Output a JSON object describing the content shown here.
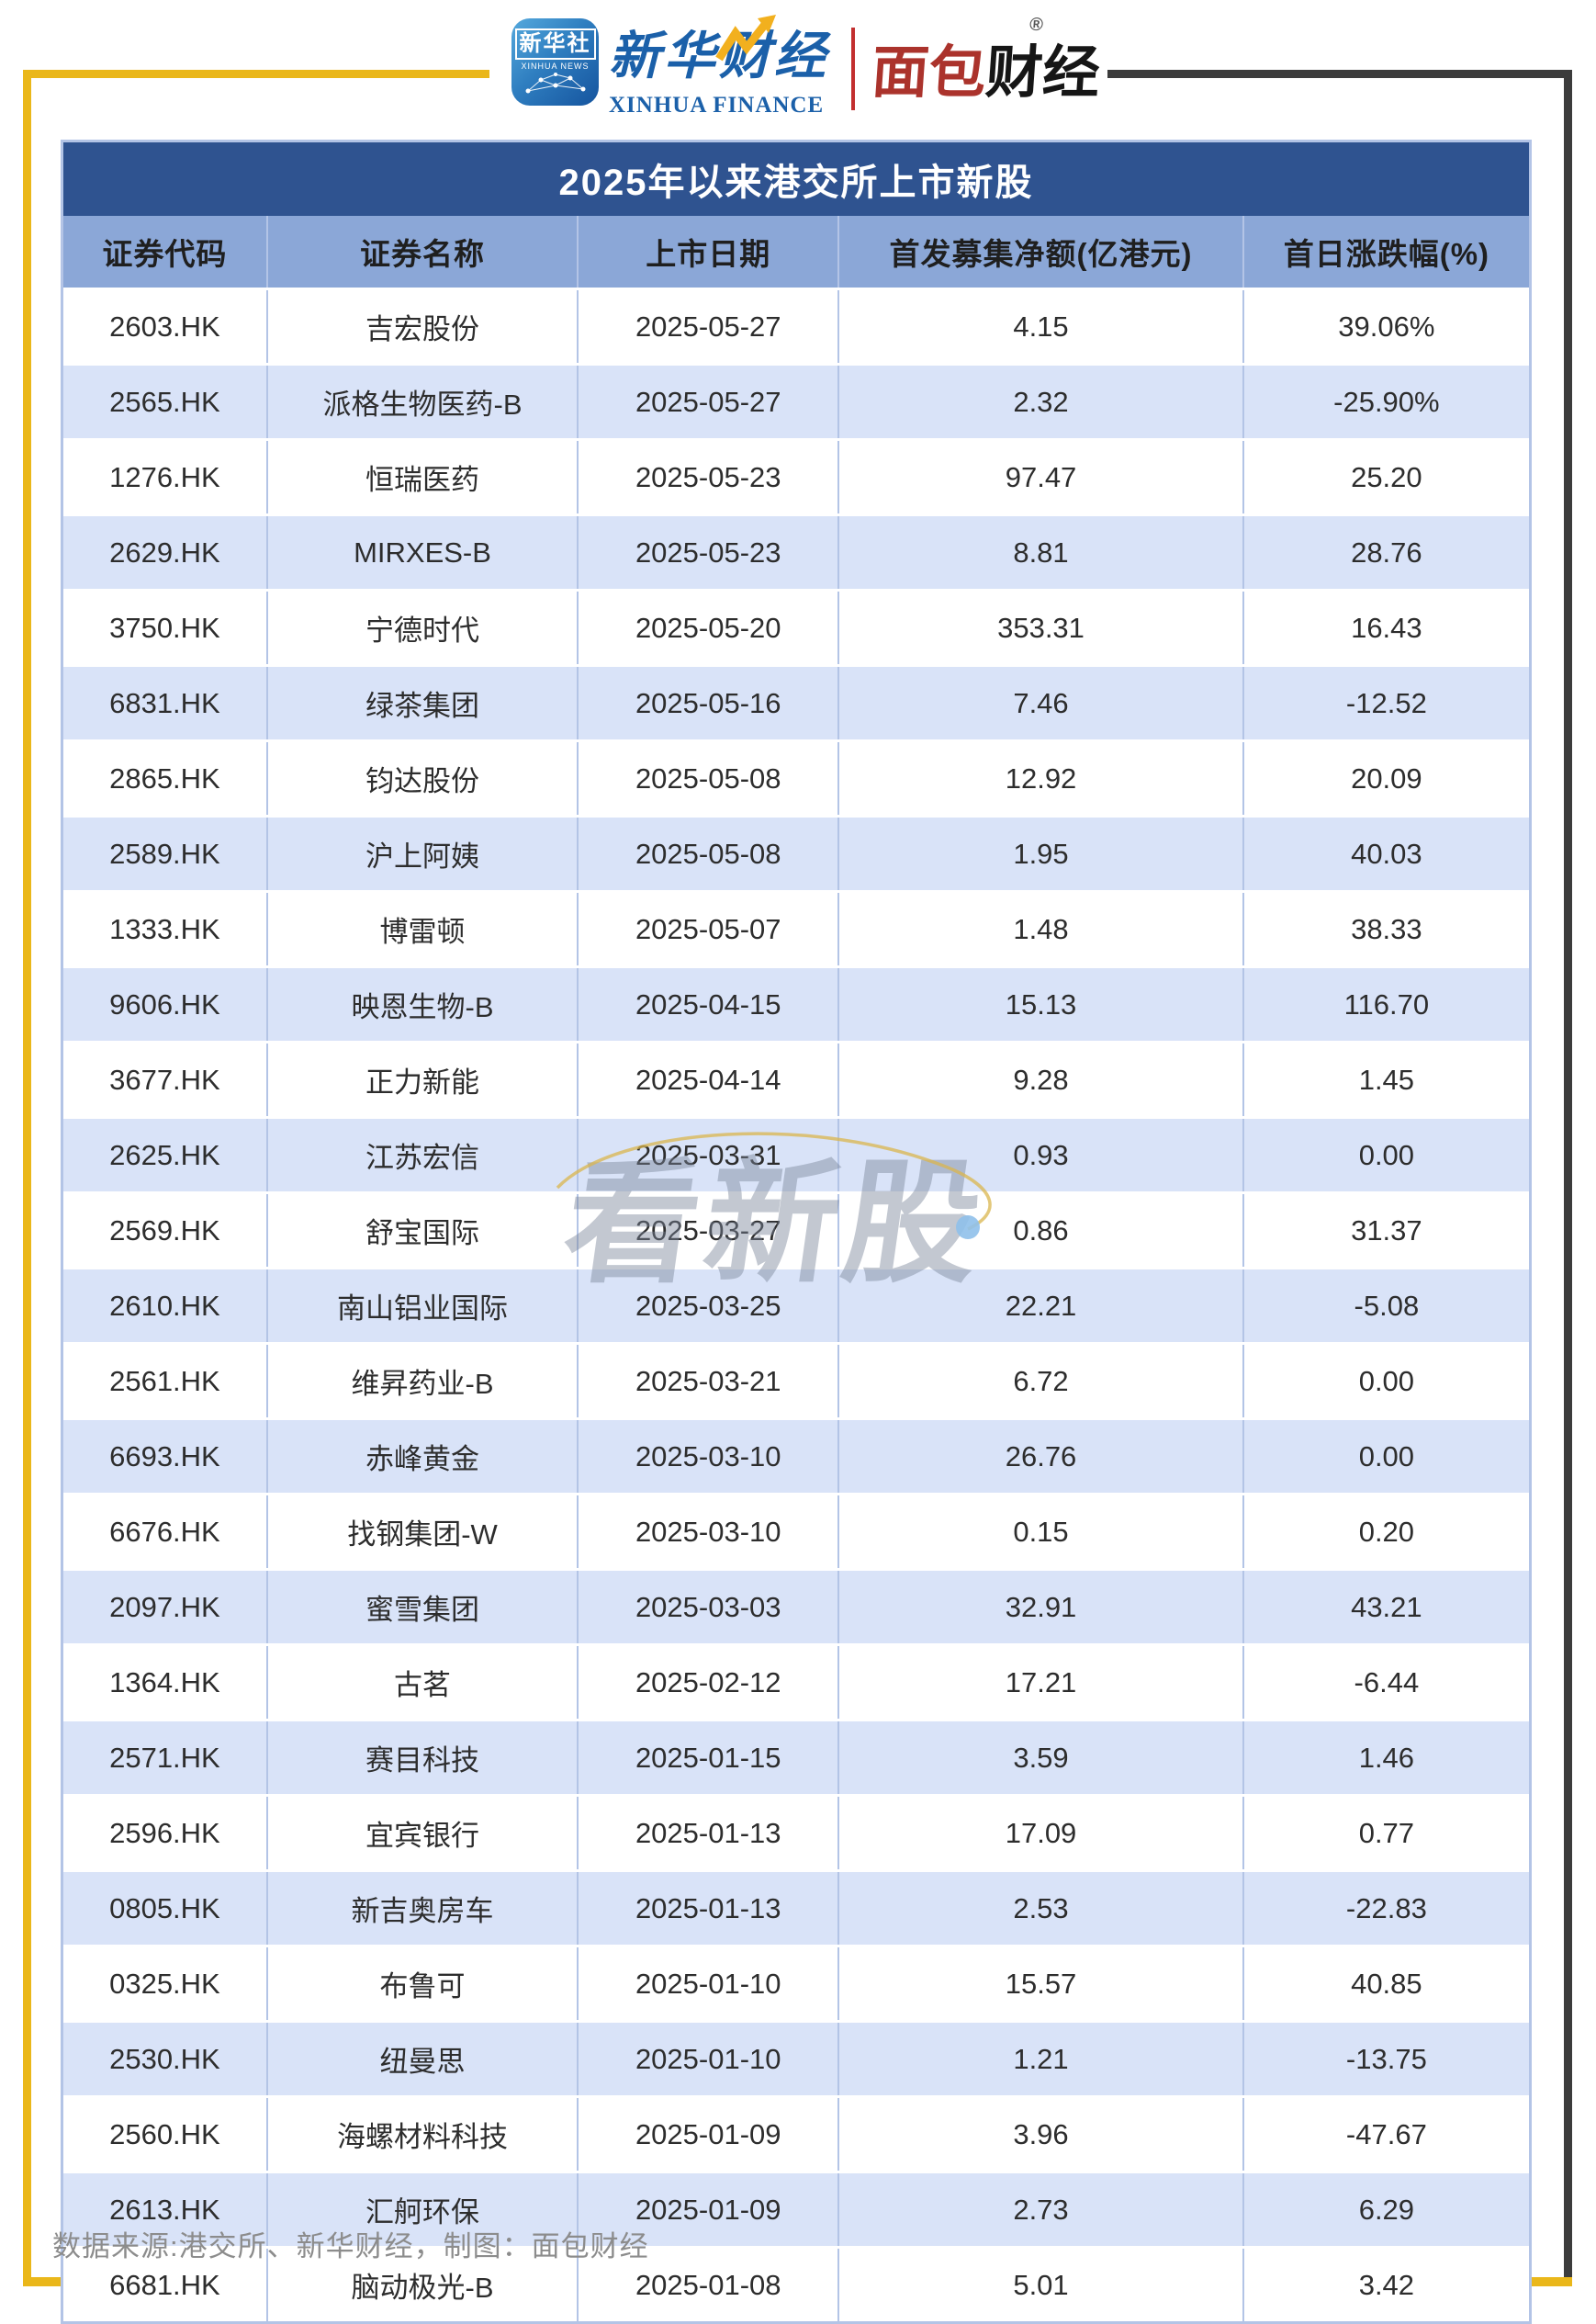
{
  "header": {
    "xinhua_icon": {
      "line1": "新华社",
      "line2": "XINHUA NEWS"
    },
    "xinhua_finance": {
      "cn": "新华财经",
      "en": "XINHUA FINANCE"
    },
    "bread_finance": {
      "part1": "面包",
      "part2": "财经",
      "reg": "®"
    }
  },
  "chart_data": {
    "type": "table",
    "title": "2025年以来港交所上市新股",
    "columns": [
      "证券代码",
      "证券名称",
      "上市日期",
      "首发募集净额(亿港元)",
      "首日涨跌幅(%)"
    ],
    "rows": [
      [
        "2603.HK",
        "吉宏股份",
        "2025-05-27",
        "4.15",
        "39.06%"
      ],
      [
        "2565.HK",
        "派格生物医药-B",
        "2025-05-27",
        "2.32",
        "-25.90%"
      ],
      [
        "1276.HK",
        "恒瑞医药",
        "2025-05-23",
        "97.47",
        "25.20"
      ],
      [
        "2629.HK",
        "MIRXES-B",
        "2025-05-23",
        "8.81",
        "28.76"
      ],
      [
        "3750.HK",
        "宁德时代",
        "2025-05-20",
        "353.31",
        "16.43"
      ],
      [
        "6831.HK",
        "绿茶集团",
        "2025-05-16",
        "7.46",
        "-12.52"
      ],
      [
        "2865.HK",
        "钧达股份",
        "2025-05-08",
        "12.92",
        "20.09"
      ],
      [
        "2589.HK",
        "沪上阿姨",
        "2025-05-08",
        "1.95",
        "40.03"
      ],
      [
        "1333.HK",
        "博雷顿",
        "2025-05-07",
        "1.48",
        "38.33"
      ],
      [
        "9606.HK",
        "映恩生物-B",
        "2025-04-15",
        "15.13",
        "116.70"
      ],
      [
        "3677.HK",
        "正力新能",
        "2025-04-14",
        "9.28",
        "1.45"
      ],
      [
        "2625.HK",
        "江苏宏信",
        "2025-03-31",
        "0.93",
        "0.00"
      ],
      [
        "2569.HK",
        "舒宝国际",
        "2025-03-27",
        "0.86",
        "31.37"
      ],
      [
        "2610.HK",
        "南山铝业国际",
        "2025-03-25",
        "22.21",
        "-5.08"
      ],
      [
        "2561.HK",
        "维昇药业-B",
        "2025-03-21",
        "6.72",
        "0.00"
      ],
      [
        "6693.HK",
        "赤峰黄金",
        "2025-03-10",
        "26.76",
        "0.00"
      ],
      [
        "6676.HK",
        "找钢集团-W",
        "2025-03-10",
        "0.15",
        "0.20"
      ],
      [
        "2097.HK",
        "蜜雪集团",
        "2025-03-03",
        "32.91",
        "43.21"
      ],
      [
        "1364.HK",
        "古茗",
        "2025-02-12",
        "17.21",
        "-6.44"
      ],
      [
        "2571.HK",
        "赛目科技",
        "2025-01-15",
        "3.59",
        "1.46"
      ],
      [
        "2596.HK",
        "宜宾银行",
        "2025-01-13",
        "17.09",
        "0.77"
      ],
      [
        "0805.HK",
        "新吉奥房车",
        "2025-01-13",
        "2.53",
        "-22.83"
      ],
      [
        "0325.HK",
        "布鲁可",
        "2025-01-10",
        "15.57",
        "40.85"
      ],
      [
        "2530.HK",
        "纽曼思",
        "2025-01-10",
        "1.21",
        "-13.75"
      ],
      [
        "2560.HK",
        "海螺材料科技",
        "2025-01-09",
        "3.96",
        "-47.67"
      ],
      [
        "2613.HK",
        "汇舸环保",
        "2025-01-09",
        "2.73",
        "6.29"
      ],
      [
        "6681.HK",
        "脑动极光-B",
        "2025-01-08",
        "5.01",
        "3.42"
      ]
    ]
  },
  "watermark": {
    "text": "看新股"
  },
  "footer": {
    "source": "数据来源:港交所、新华财经，制图：面包财经"
  },
  "colors": {
    "title_bar": "#2F5390",
    "header_row": "#8BA7D7",
    "row_alt": "#D9E3F8",
    "table_border": "#B3C4E6",
    "frame_yellow": "#EAB71A",
    "frame_dark": "#3C3C3C",
    "divider_red": "#C22F2F",
    "xinhua_blue": "#1B60A9",
    "bread_red": "#AB332C",
    "footer_gray": "#8C8C8C"
  }
}
